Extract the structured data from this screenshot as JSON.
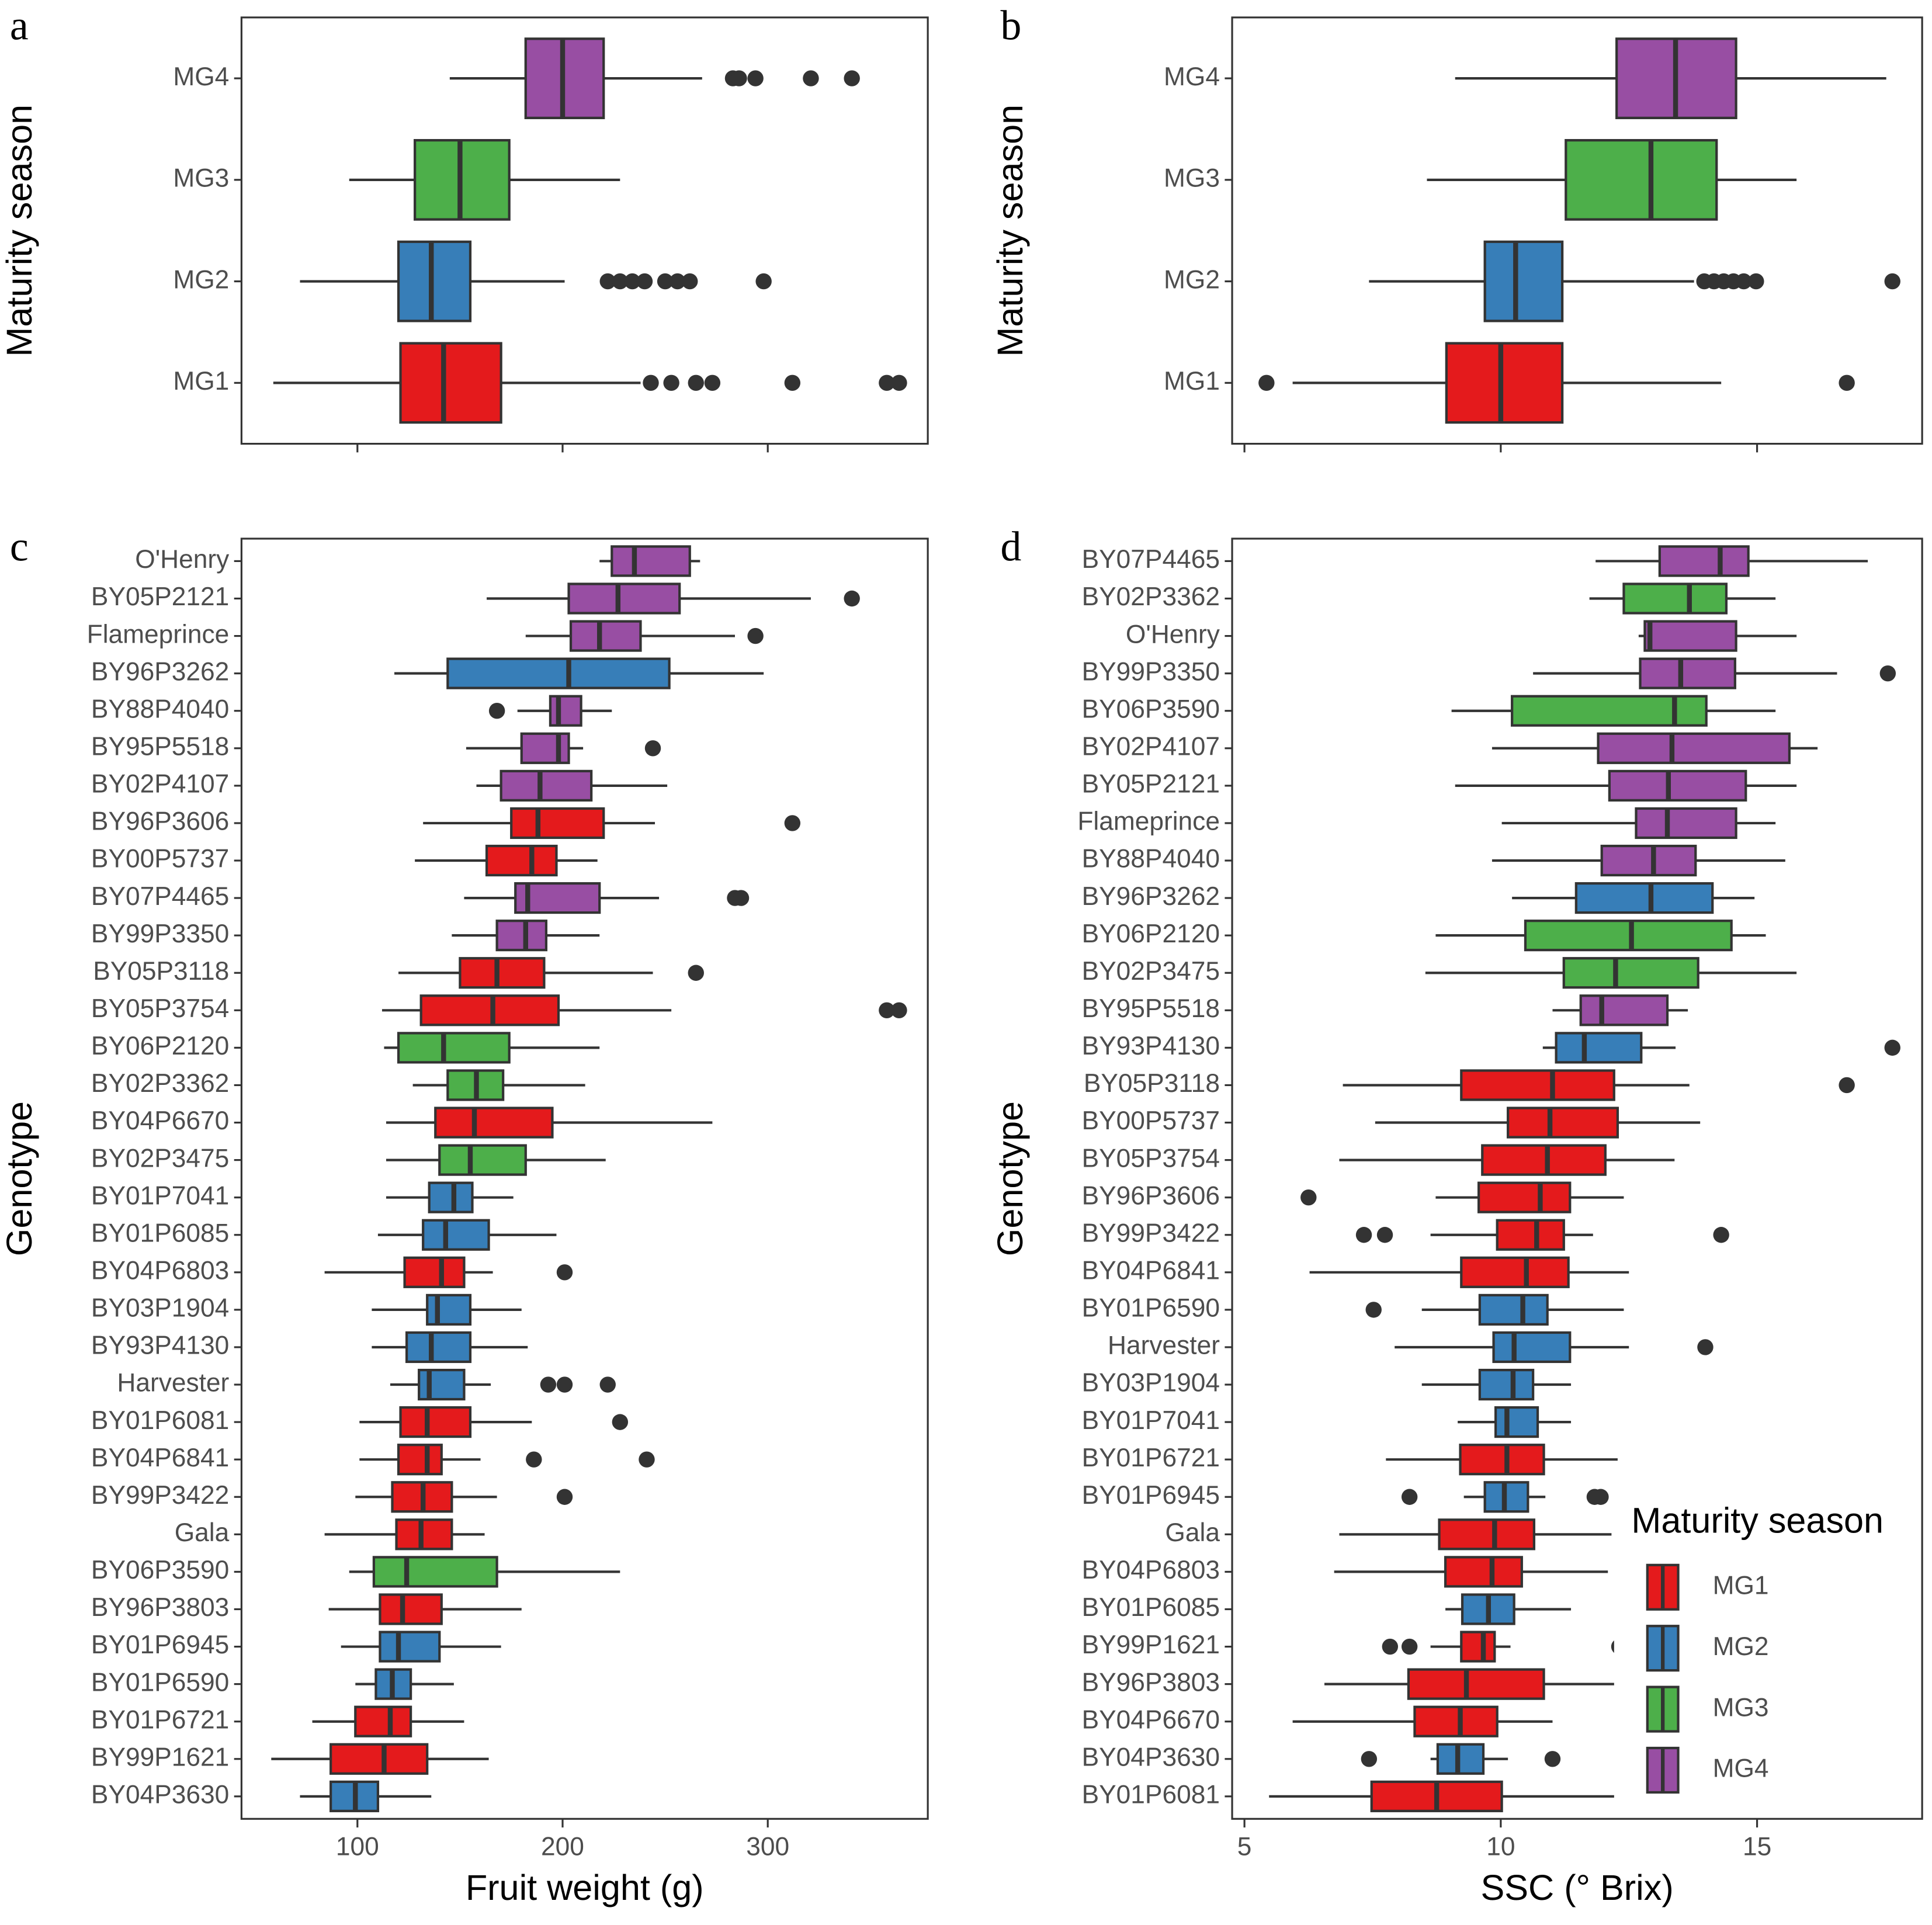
{
  "chart_data": [
    {
      "type": "boxplot",
      "panel_label": "a",
      "y_label": "Maturity season",
      "xlim": [
        43.5,
        378
      ],
      "xticks": [
        100,
        200,
        300
      ],
      "show_x_tick_labels": false,
      "categories": [
        "MG4",
        "MG3",
        "MG2",
        "MG1"
      ],
      "boxes": [
        {
          "group": "MG4",
          "low": 145,
          "q1": 182,
          "median": 200,
          "q3": 220,
          "high": 268,
          "outliers": [
            283,
            286,
            294,
            321,
            341
          ]
        },
        {
          "group": "MG3",
          "low": 96,
          "q1": 128,
          "median": 150,
          "q3": 174,
          "high": 228
        },
        {
          "group": "MG2",
          "low": 72,
          "q1": 120,
          "median": 136,
          "q3": 155,
          "high": 201,
          "outliers": [
            222,
            228,
            234,
            240,
            250,
            256,
            262,
            298
          ]
        },
        {
          "group": "MG1",
          "low": 59,
          "q1": 121,
          "median": 142,
          "q3": 170,
          "high": 238,
          "outliers": [
            243,
            253,
            265,
            273,
            312,
            358,
            364
          ]
        }
      ]
    },
    {
      "type": "boxplot",
      "panel_label": "b",
      "y_label": "Maturity season",
      "xlim": [
        4.76,
        18.22
      ],
      "xticks": [
        5,
        10,
        15
      ],
      "show_x_tick_labels": false,
      "categories": [
        "MG4",
        "MG3",
        "MG2",
        "MG1"
      ],
      "boxes": [
        {
          "group": "MG4",
          "low": 9.11,
          "q1": 12.26,
          "median": 13.41,
          "q3": 14.59,
          "high": 17.52
        },
        {
          "group": "MG3",
          "low": 8.56,
          "q1": 11.27,
          "median": 12.93,
          "q3": 14.21,
          "high": 15.77
        },
        {
          "group": "MG2",
          "low": 7.43,
          "q1": 9.69,
          "median": 10.29,
          "q3": 11.2,
          "high": 13.77,
          "outliers": [
            13.97,
            14.16,
            14.35,
            14.54,
            14.74,
            14.98,
            17.64
          ]
        },
        {
          "group": "MG1",
          "low": 5.94,
          "q1": 8.94,
          "median": 10.0,
          "q3": 11.2,
          "high": 14.3,
          "outliers": [
            5.43,
            16.75
          ]
        }
      ]
    },
    {
      "type": "boxplot",
      "panel_label": "c",
      "y_label": "Genotype",
      "x_label": "Fruit weight (g)",
      "xlim": [
        43.5,
        378
      ],
      "xticks": [
        100,
        200,
        300
      ],
      "show_x_tick_labels": true,
      "categories": [
        "O'Henry",
        "BY05P2121",
        "Flameprince",
        "BY96P3262",
        "BY88P4040",
        "BY95P5518",
        "BY02P4107",
        "BY96P3606",
        "BY00P5737",
        "BY07P4465",
        "BY99P3350",
        "BY05P3118",
        "BY05P3754",
        "BY06P2120",
        "BY02P3362",
        "BY04P6670",
        "BY02P3475",
        "BY01P7041",
        "BY01P6085",
        "BY04P6803",
        "BY03P1904",
        "BY93P4130",
        "Harvester",
        "BY01P6081",
        "BY04P6841",
        "BY99P3422",
        "Gala",
        "BY06P3590",
        "BY96P3803",
        "BY01P6945",
        "BY01P6590",
        "BY01P6721",
        "BY99P1621",
        "BY04P3630"
      ],
      "boxes": [
        {
          "group": "MG4",
          "low": 218,
          "q1": 224,
          "median": 235,
          "q3": 262,
          "high": 267
        },
        {
          "group": "MG4",
          "low": 163,
          "q1": 203,
          "median": 227,
          "q3": 257,
          "high": 321,
          "outliers": [
            341
          ]
        },
        {
          "group": "MG4",
          "low": 182,
          "q1": 204,
          "median": 218,
          "q3": 238,
          "high": 284,
          "outliers": [
            294
          ]
        },
        {
          "group": "MG2",
          "low": 118,
          "q1": 144,
          "median": 203,
          "q3": 252,
          "high": 298
        },
        {
          "group": "MG4",
          "low": 178,
          "q1": 194,
          "median": 198,
          "q3": 209,
          "high": 224,
          "outliers": [
            168
          ]
        },
        {
          "group": "MG4",
          "low": 153,
          "q1": 180,
          "median": 198,
          "q3": 203,
          "high": 210,
          "outliers": [
            244
          ]
        },
        {
          "group": "MG4",
          "low": 158,
          "q1": 170,
          "median": 189,
          "q3": 214,
          "high": 251
        },
        {
          "group": "MG1",
          "low": 132,
          "q1": 175,
          "median": 188,
          "q3": 220,
          "high": 245,
          "outliers": [
            312
          ]
        },
        {
          "group": "MG1",
          "low": 128,
          "q1": 163,
          "median": 185,
          "q3": 197,
          "high": 217
        },
        {
          "group": "MG4",
          "low": 152,
          "q1": 177,
          "median": 183,
          "q3": 218,
          "high": 247,
          "outliers": [
            284,
            287
          ]
        },
        {
          "group": "MG4",
          "low": 146,
          "q1": 168,
          "median": 182,
          "q3": 192,
          "high": 218
        },
        {
          "group": "MG1",
          "low": 120,
          "q1": 150,
          "median": 168,
          "q3": 191,
          "high": 244,
          "outliers": [
            265
          ]
        },
        {
          "group": "MG1",
          "low": 112,
          "q1": 131,
          "median": 166,
          "q3": 198,
          "high": 253,
          "outliers": [
            358,
            364
          ]
        },
        {
          "group": "MG3",
          "low": 113,
          "q1": 120,
          "median": 142,
          "q3": 174,
          "high": 218
        },
        {
          "group": "MG3",
          "low": 127,
          "q1": 144,
          "median": 158,
          "q3": 171,
          "high": 211
        },
        {
          "group": "MG1",
          "low": 114,
          "q1": 138,
          "median": 157,
          "q3": 195,
          "high": 273
        },
        {
          "group": "MG3",
          "low": 114,
          "q1": 140,
          "median": 155,
          "q3": 182,
          "high": 221
        },
        {
          "group": "MG2",
          "low": 114,
          "q1": 135,
          "median": 147,
          "q3": 156,
          "high": 176
        },
        {
          "group": "MG2",
          "low": 110,
          "q1": 132,
          "median": 143,
          "q3": 164,
          "high": 197
        },
        {
          "group": "MG1",
          "low": 84,
          "q1": 123,
          "median": 141,
          "q3": 152,
          "high": 166,
          "outliers": [
            201
          ]
        },
        {
          "group": "MG2",
          "low": 107,
          "q1": 134,
          "median": 139,
          "q3": 155,
          "high": 180
        },
        {
          "group": "MG2",
          "low": 107,
          "q1": 124,
          "median": 136,
          "q3": 155,
          "high": 183
        },
        {
          "group": "MG2",
          "low": 116,
          "q1": 130,
          "median": 135,
          "q3": 152,
          "high": 165,
          "outliers": [
            193,
            201,
            222
          ]
        },
        {
          "group": "MG1",
          "low": 101,
          "q1": 121,
          "median": 134,
          "q3": 155,
          "high": 185,
          "outliers": [
            228
          ]
        },
        {
          "group": "MG1",
          "low": 101,
          "q1": 120,
          "median": 134,
          "q3": 141,
          "high": 160,
          "outliers": [
            186,
            241
          ]
        },
        {
          "group": "MG1",
          "low": 99,
          "q1": 117,
          "median": 132,
          "q3": 146,
          "high": 168,
          "outliers": [
            201
          ]
        },
        {
          "group": "MG1",
          "low": 84,
          "q1": 119,
          "median": 131,
          "q3": 146,
          "high": 162
        },
        {
          "group": "MG3",
          "low": 96,
          "q1": 108,
          "median": 124,
          "q3": 168,
          "high": 228
        },
        {
          "group": "MG1",
          "low": 86,
          "q1": 111,
          "median": 122,
          "q3": 141,
          "high": 180
        },
        {
          "group": "MG2",
          "low": 92,
          "q1": 111,
          "median": 120,
          "q3": 140,
          "high": 170
        },
        {
          "group": "MG2",
          "low": 99,
          "q1": 109,
          "median": 117,
          "q3": 126,
          "high": 147
        },
        {
          "group": "MG1",
          "low": 78,
          "q1": 99,
          "median": 116,
          "q3": 126,
          "high": 152
        },
        {
          "group": "MG1",
          "low": 58,
          "q1": 87,
          "median": 113,
          "q3": 134,
          "high": 164
        },
        {
          "group": "MG2",
          "low": 72,
          "q1": 87,
          "median": 99,
          "q3": 110,
          "high": 136
        }
      ]
    },
    {
      "type": "boxplot",
      "panel_label": "d",
      "y_label": "Genotype",
      "x_label": "SSC (° Brix)",
      "xlim": [
        4.76,
        18.22
      ],
      "xticks": [
        5,
        10,
        15
      ],
      "show_x_tick_labels": true,
      "legend": {
        "title": "Maturity season",
        "position": "lower right",
        "entries": [
          {
            "name": "MG1",
            "color": "#e41a1c"
          },
          {
            "name": "MG2",
            "color": "#377eb8"
          },
          {
            "name": "MG3",
            "color": "#4daf4a"
          },
          {
            "name": "MG4",
            "color": "#984ea3"
          }
        ]
      },
      "categories": [
        "BY07P4465",
        "BY02P3362",
        "O'Henry",
        "BY99P3350",
        "BY06P3590",
        "BY02P4107",
        "BY05P2121",
        "Flameprince",
        "BY88P4040",
        "BY96P3262",
        "BY06P2120",
        "BY02P3475",
        "BY95P5518",
        "BY93P4130",
        "BY05P3118",
        "BY00P5737",
        "BY05P3754",
        "BY96P3606",
        "BY99P3422",
        "BY04P6841",
        "BY01P6590",
        "Harvester",
        "BY03P1904",
        "BY01P7041",
        "BY01P6721",
        "BY01P6945",
        "Gala",
        "BY04P6803",
        "BY01P6085",
        "BY99P1621",
        "BY96P3803",
        "BY04P6670",
        "BY04P3630",
        "BY01P6081"
      ],
      "boxes": [
        {
          "group": "MG4",
          "low": 11.85,
          "q1": 13.1,
          "median": 14.28,
          "q3": 14.83,
          "high": 17.16
        },
        {
          "group": "MG3",
          "low": 11.73,
          "q1": 12.4,
          "median": 13.68,
          "q3": 14.4,
          "high": 15.36
        },
        {
          "group": "MG4",
          "low": 12.69,
          "q1": 12.81,
          "median": 12.91,
          "q3": 14.59,
          "high": 15.77
        },
        {
          "group": "MG4",
          "low": 10.63,
          "q1": 12.72,
          "median": 13.51,
          "q3": 14.57,
          "high": 16.56,
          "outliers": [
            17.55
          ]
        },
        {
          "group": "MG3",
          "low": 9.04,
          "q1": 10.22,
          "median": 13.39,
          "q3": 14.01,
          "high": 15.36
        },
        {
          "group": "MG4",
          "low": 9.83,
          "q1": 11.9,
          "median": 13.34,
          "q3": 15.63,
          "high": 16.18
        },
        {
          "group": "MG4",
          "low": 9.11,
          "q1": 12.12,
          "median": 13.27,
          "q3": 14.78,
          "high": 15.77
        },
        {
          "group": "MG4",
          "low": 10.02,
          "q1": 12.64,
          "median": 13.25,
          "q3": 14.59,
          "high": 15.36
        },
        {
          "group": "MG4",
          "low": 9.83,
          "q1": 11.97,
          "median": 12.98,
          "q3": 13.8,
          "high": 15.55
        },
        {
          "group": "MG2",
          "low": 10.22,
          "q1": 11.47,
          "median": 12.93,
          "q3": 14.13,
          "high": 14.95
        },
        {
          "group": "MG3",
          "low": 8.73,
          "q1": 10.48,
          "median": 12.55,
          "q3": 14.5,
          "high": 15.17
        },
        {
          "group": "MG3",
          "low": 8.53,
          "q1": 11.23,
          "median": 12.24,
          "q3": 13.85,
          "high": 15.77
        },
        {
          "group": "MG4",
          "low": 11.01,
          "q1": 11.56,
          "median": 11.97,
          "q3": 13.25,
          "high": 13.65
        },
        {
          "group": "MG2",
          "low": 10.82,
          "q1": 11.08,
          "median": 11.63,
          "q3": 12.74,
          "high": 13.41,
          "outliers": [
            17.64
          ]
        },
        {
          "group": "MG1",
          "low": 6.92,
          "q1": 9.23,
          "median": 11.01,
          "q3": 12.21,
          "high": 13.68,
          "outliers": [
            16.75
          ]
        },
        {
          "group": "MG1",
          "low": 7.55,
          "q1": 10.14,
          "median": 10.96,
          "q3": 12.28,
          "high": 13.89
        },
        {
          "group": "MG1",
          "low": 6.85,
          "q1": 9.64,
          "median": 10.91,
          "q3": 12.04,
          "high": 13.39
        },
        {
          "group": "MG1",
          "low": 8.73,
          "q1": 9.57,
          "median": 10.77,
          "q3": 11.35,
          "high": 12.4,
          "outliers": [
            6.25
          ]
        },
        {
          "group": "MG1",
          "low": 8.63,
          "q1": 9.93,
          "median": 10.7,
          "q3": 11.23,
          "high": 11.8,
          "outliers": [
            7.33,
            7.74,
            14.3
          ]
        },
        {
          "group": "MG1",
          "low": 6.27,
          "q1": 9.23,
          "median": 10.5,
          "q3": 11.32,
          "high": 12.5
        },
        {
          "group": "MG2",
          "low": 8.46,
          "q1": 9.59,
          "median": 10.43,
          "q3": 10.91,
          "high": 12.4,
          "outliers": [
            7.52
          ]
        },
        {
          "group": "MG2",
          "low": 7.93,
          "q1": 9.86,
          "median": 10.26,
          "q3": 11.35,
          "high": 12.5,
          "outliers": [
            13.99
          ]
        },
        {
          "group": "MG2",
          "low": 8.46,
          "q1": 9.59,
          "median": 10.24,
          "q3": 10.63,
          "high": 11.37
        },
        {
          "group": "MG2",
          "low": 9.16,
          "q1": 9.9,
          "median": 10.12,
          "q3": 10.72,
          "high": 11.37
        },
        {
          "group": "MG1",
          "low": 7.76,
          "q1": 9.21,
          "median": 10.12,
          "q3": 10.84,
          "high": 12.28
        },
        {
          "group": "MG2",
          "low": 9.28,
          "q1": 9.69,
          "median": 10.07,
          "q3": 10.53,
          "high": 10.87,
          "outliers": [
            8.22,
            11.83,
            11.95
          ]
        },
        {
          "group": "MG1",
          "low": 6.85,
          "q1": 8.8,
          "median": 9.88,
          "q3": 10.65,
          "high": 12.16
        },
        {
          "group": "MG1",
          "low": 6.75,
          "q1": 8.92,
          "median": 9.83,
          "q3": 10.41,
          "high": 12.09
        },
        {
          "group": "MG2",
          "low": 8.92,
          "q1": 9.25,
          "median": 9.76,
          "q3": 10.26,
          "high": 11.37
        },
        {
          "group": "MG1",
          "low": 8.63,
          "q1": 9.23,
          "median": 9.66,
          "q3": 9.88,
          "high": 10.19,
          "outliers": [
            7.84,
            8.22,
            12.31
          ]
        },
        {
          "group": "MG1",
          "low": 6.56,
          "q1": 8.2,
          "median": 9.33,
          "q3": 10.84,
          "high": 12.57
        },
        {
          "group": "MG1",
          "low": 5.94,
          "q1": 8.32,
          "median": 9.21,
          "q3": 9.93,
          "high": 11.01
        },
        {
          "group": "MG2",
          "low": 8.63,
          "q1": 8.77,
          "median": 9.16,
          "q3": 9.66,
          "high": 10.14,
          "outliers": [
            7.43,
            11.01
          ]
        },
        {
          "group": "MG1",
          "low": 5.48,
          "q1": 7.48,
          "median": 8.75,
          "q3": 10.02,
          "high": 12.28,
          "outliers": [
            14.3
          ]
        }
      ]
    }
  ]
}
